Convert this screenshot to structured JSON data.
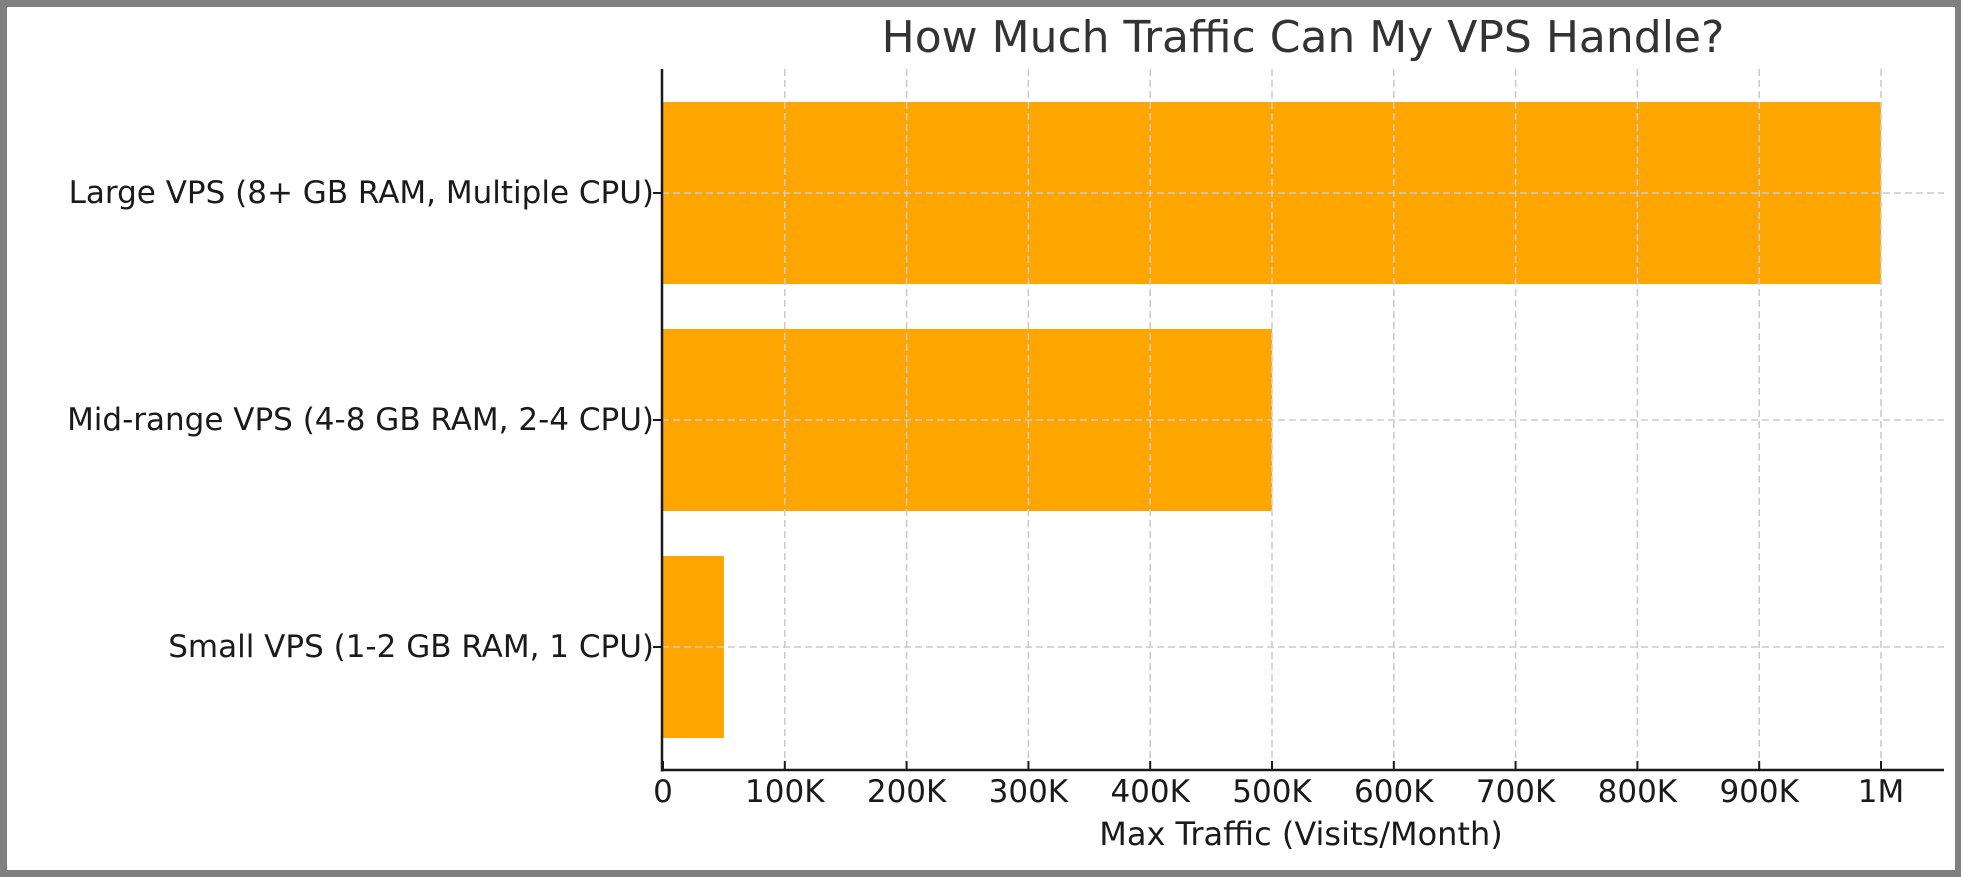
{
  "chart_data": {
    "type": "bar",
    "orientation": "horizontal",
    "title": "How Much Traffic Can My VPS Handle?",
    "xlabel": "Max Traffic (Visits/Month)",
    "ylabel": "",
    "categories": [
      "Large VPS (8+ GB RAM, Multiple CPU)",
      "Mid-range VPS (4-8 GB RAM, 2-4 CPU)",
      "Small VPS (1-2 GB RAM, 1 CPU)"
    ],
    "values": [
      1000000,
      500000,
      50000
    ],
    "xlim": [
      0,
      1050000
    ],
    "xticks": [
      0,
      100000,
      200000,
      300000,
      400000,
      500000,
      600000,
      700000,
      800000,
      900000,
      1000000
    ],
    "xtick_labels": [
      "0",
      "100K",
      "200K",
      "300K",
      "400K",
      "500K",
      "600K",
      "700K",
      "800K",
      "900K",
      "1M"
    ],
    "grid": true,
    "grid_style": "dashed",
    "bar_color": "#FFA500",
    "legend": null
  },
  "colors": {
    "bar": "#FFA500",
    "grid": "#cccccc",
    "axis": "#1a1a1a",
    "title": "#333333",
    "border": "#808080"
  }
}
